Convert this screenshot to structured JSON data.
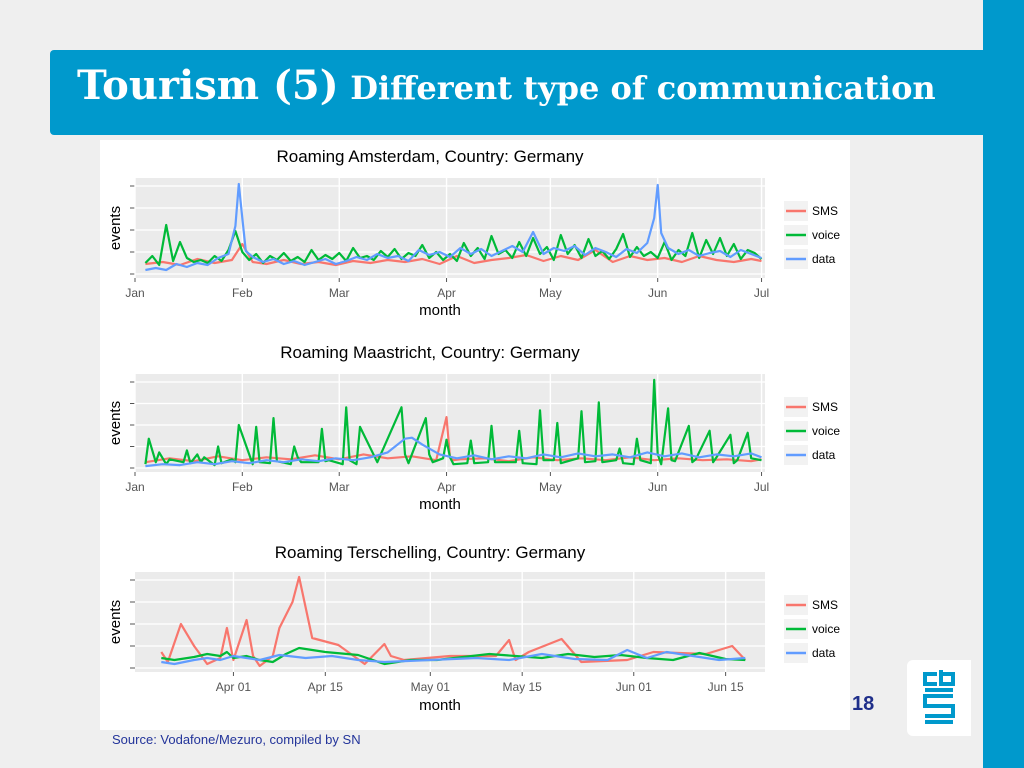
{
  "slide": {
    "title_main": "Tourism (5)",
    "title_sub": "Different type of communication",
    "page_number": "18",
    "source": "Source: Vodafone/Mezuro, compiled by SN",
    "accent_color": "#0099cc",
    "logo_icon": "cbs-logo-icon"
  },
  "chart_data": [
    {
      "type": "line",
      "title": "Roaming Amsterdam, Country: Germany",
      "xlabel": "month",
      "ylabel": "events",
      "x_ticks": [
        "Jan",
        "Feb",
        "Mar",
        "Apr",
        "May",
        "Jun",
        "Jul"
      ],
      "xlim": [
        0,
        182
      ],
      "ylim": [
        0,
        100
      ],
      "grid": true,
      "legend_position": "right",
      "series": [
        {
          "name": "SMS",
          "color": "#f8766d",
          "x": [
            3,
            8,
            13,
            18,
            23,
            28,
            31,
            34,
            38,
            43,
            48,
            53,
            58,
            63,
            68,
            73,
            78,
            83,
            88,
            93,
            98,
            103,
            108,
            113,
            118,
            123,
            128,
            133,
            138,
            143,
            148,
            153,
            158,
            163,
            168,
            173,
            178,
            181
          ],
          "y": [
            14,
            16,
            13,
            19,
            15,
            18,
            34,
            16,
            14,
            18,
            14,
            16,
            13,
            17,
            15,
            18,
            16,
            19,
            14,
            22,
            15,
            18,
            20,
            23,
            17,
            22,
            18,
            28,
            16,
            22,
            18,
            20,
            16,
            22,
            18,
            16,
            19,
            17
          ]
        },
        {
          "name": "voice",
          "color": "#00ba38",
          "x": [
            3,
            5,
            7,
            9,
            11,
            13,
            15,
            17,
            19,
            21,
            23,
            25,
            27,
            29,
            31,
            33,
            35,
            37,
            39,
            41,
            43,
            45,
            47,
            49,
            51,
            53,
            55,
            57,
            59,
            61,
            63,
            65,
            67,
            69,
            71,
            73,
            75,
            77,
            79,
            81,
            83,
            85,
            87,
            89,
            91,
            93,
            95,
            97,
            99,
            101,
            103,
            105,
            107,
            109,
            111,
            113,
            115,
            117,
            119,
            121,
            123,
            125,
            127,
            129,
            131,
            133,
            135,
            137,
            139,
            141,
            143,
            145,
            147,
            149,
            151,
            153,
            155,
            157,
            159,
            161,
            163,
            165,
            167,
            169,
            171,
            173,
            175,
            177,
            179,
            181
          ],
          "y": [
            15,
            22,
            13,
            53,
            17,
            36,
            20,
            16,
            18,
            15,
            22,
            17,
            28,
            47,
            26,
            18,
            24,
            15,
            22,
            18,
            25,
            17,
            21,
            16,
            28,
            18,
            23,
            19,
            25,
            17,
            30,
            20,
            22,
            18,
            27,
            21,
            29,
            19,
            25,
            22,
            33,
            20,
            26,
            18,
            24,
            17,
            35,
            22,
            30,
            19,
            42,
            24,
            28,
            20,
            36,
            22,
            40,
            24,
            31,
            18,
            43,
            24,
            33,
            20,
            39,
            22,
            27,
            19,
            29,
            44,
            21,
            31,
            22,
            26,
            20,
            36,
            18,
            28,
            22,
            45,
            20,
            38,
            24,
            40,
            22,
            34,
            19,
            28,
            25,
            19
          ]
        },
        {
          "name": "data",
          "color": "#619cff",
          "x": [
            3,
            6,
            9,
            12,
            15,
            18,
            21,
            24,
            27,
            29,
            30,
            31,
            32,
            34,
            37,
            40,
            43,
            46,
            49,
            52,
            55,
            58,
            61,
            64,
            67,
            70,
            73,
            76,
            79,
            82,
            85,
            88,
            91,
            94,
            97,
            100,
            103,
            106,
            109,
            112,
            115,
            118,
            121,
            124,
            127,
            130,
            133,
            136,
            139,
            142,
            145,
            148,
            150,
            151,
            152,
            154,
            157,
            160,
            163,
            166,
            169,
            172,
            175,
            178,
            181
          ],
          "y": [
            8,
            10,
            8,
            14,
            11,
            15,
            13,
            20,
            24,
            52,
            94,
            60,
            27,
            21,
            16,
            19,
            14,
            17,
            13,
            16,
            19,
            14,
            17,
            21,
            18,
            24,
            20,
            22,
            17,
            28,
            23,
            26,
            21,
            30,
            24,
            29,
            22,
            27,
            32,
            26,
            46,
            24,
            30,
            27,
            32,
            23,
            30,
            26,
            21,
            29,
            25,
            35,
            60,
            93,
            45,
            30,
            24,
            28,
            22,
            25,
            27,
            21,
            28,
            24,
            20
          ]
        }
      ]
    },
    {
      "type": "line",
      "title": "Roaming Maastricht, Country: Germany",
      "xlabel": "month",
      "ylabel": "events",
      "x_ticks": [
        "Jan",
        "Feb",
        "Mar",
        "Apr",
        "May",
        "Jun",
        "Jul"
      ],
      "xlim": [
        0,
        182
      ],
      "ylim": [
        0,
        100
      ],
      "grid": true,
      "legend_position": "right",
      "series": [
        {
          "name": "SMS",
          "color": "#f8766d",
          "x": [
            3,
            10,
            17,
            24,
            31,
            38,
            45,
            52,
            59,
            66,
            73,
            80,
            87,
            90,
            91,
            92,
            94,
            101,
            108,
            115,
            122,
            129,
            136,
            143,
            150,
            157,
            164,
            171,
            178,
            181
          ],
          "y": [
            10,
            14,
            11,
            16,
            12,
            15,
            13,
            17,
            13,
            18,
            14,
            16,
            12,
            56,
            15,
            12,
            13,
            14,
            11,
            15,
            12,
            14,
            12,
            15,
            12,
            14,
            12,
            13,
            11,
            13
          ]
        },
        {
          "name": "voice",
          "color": "#00ba38",
          "x": [
            3,
            4,
            6,
            7,
            9,
            10,
            14,
            15,
            16,
            18,
            19,
            20,
            23,
            24,
            25,
            28,
            29,
            30,
            34,
            35,
            36,
            39,
            40,
            41,
            45,
            46,
            47,
            48,
            53,
            54,
            55,
            56,
            60,
            61,
            62,
            64,
            65,
            70,
            77,
            78,
            79,
            84,
            85,
            86,
            89,
            90,
            91,
            92,
            96,
            97,
            98,
            102,
            103,
            104,
            110,
            111,
            112,
            116,
            117,
            118,
            121,
            122,
            123,
            128,
            129,
            130,
            133,
            134,
            135,
            139,
            140,
            141,
            144,
            145,
            146,
            149,
            150,
            151,
            152,
            154,
            155,
            156,
            160,
            161,
            162,
            166,
            167,
            168,
            172,
            173,
            174,
            177,
            178,
            181
          ],
          "y": [
            8,
            34,
            10,
            20,
            8,
            13,
            10,
            22,
            9,
            18,
            10,
            15,
            7,
            26,
            9,
            13,
            10,
            48,
            8,
            46,
            10,
            9,
            55,
            11,
            8,
            26,
            15,
            10,
            10,
            44,
            11,
            12,
            8,
            66,
            12,
            8,
            46,
            10,
            66,
            18,
            9,
            55,
            18,
            10,
            14,
            33,
            15,
            8,
            9,
            32,
            9,
            10,
            47,
            10,
            10,
            42,
            9,
            8,
            63,
            12,
            12,
            50,
            9,
            14,
            62,
            10,
            11,
            71,
            10,
            12,
            24,
            9,
            8,
            34,
            12,
            9,
            94,
            18,
            8,
            65,
            12,
            11,
            47,
            10,
            13,
            42,
            10,
            15,
            38,
            9,
            12,
            40,
            14,
            12
          ]
        },
        {
          "name": "data",
          "color": "#619cff",
          "x": [
            3,
            8,
            13,
            18,
            23,
            28,
            33,
            38,
            43,
            48,
            53,
            58,
            63,
            68,
            73,
            78,
            80,
            83,
            88,
            93,
            98,
            103,
            108,
            113,
            118,
            123,
            128,
            133,
            138,
            143,
            148,
            153,
            158,
            163,
            168,
            173,
            178,
            181
          ],
          "y": [
            6,
            8,
            7,
            10,
            8,
            11,
            9,
            12,
            10,
            13,
            11,
            14,
            12,
            15,
            20,
            34,
            35,
            28,
            18,
            14,
            17,
            13,
            16,
            14,
            18,
            15,
            19,
            16,
            18,
            15,
            20,
            16,
            19,
            15,
            18,
            16,
            19,
            15
          ]
        }
      ]
    },
    {
      "type": "line",
      "title": "Roaming Terschelling, Country: Germany",
      "xlabel": "month",
      "ylabel": "events",
      "x_ticks": [
        "Apr 01",
        "Apr 15",
        "May 01",
        "May 15",
        "Jun 01",
        "Jun 15"
      ],
      "xlim": [
        "Mar 17",
        "Jun 21"
      ],
      "ylim": [
        0,
        100
      ],
      "grid": true,
      "legend_position": "right",
      "series": [
        {
          "name": "SMS",
          "color": "#f8766d",
          "x": [
            "Mar 21",
            "Mar 22",
            "Mar 24",
            "Mar 26",
            "Mar 28",
            "Mar 30",
            "Mar 31",
            "Apr 01",
            "Apr 03",
            "Apr 04",
            "Apr 05",
            "Apr 07",
            "Apr 08",
            "Apr 10",
            "Apr 11",
            "Apr 13",
            "Apr 17",
            "Apr 21",
            "Apr 24",
            "Apr 25",
            "Apr 27",
            "May 04",
            "May 11",
            "May 13",
            "May 14",
            "May 16",
            "May 21",
            "May 24",
            "May 31",
            "Jun 04",
            "Jun 12",
            "Jun 16",
            "Jun 18"
          ],
          "y": [
            20,
            10,
            48,
            26,
            8,
            14,
            44,
            12,
            52,
            16,
            6,
            16,
            44,
            70,
            95,
            34,
            27,
            8,
            28,
            16,
            12,
            16,
            16,
            32,
            12,
            20,
            33,
            10,
            12,
            20,
            18,
            26,
            12
          ]
        },
        {
          "name": "voice",
          "color": "#00ba38",
          "x": [
            "Mar 21",
            "Mar 23",
            "Mar 26",
            "Mar 28",
            "Mar 30",
            "Mar 31",
            "Apr 01",
            "Apr 03",
            "Apr 05",
            "Apr 07",
            "Apr 09",
            "Apr 11",
            "Apr 15",
            "Apr 20",
            "Apr 24",
            "Apr 28",
            "May 02",
            "May 06",
            "May 10",
            "May 14",
            "May 18",
            "May 22",
            "May 26",
            "May 30",
            "Jun 03",
            "Jun 07",
            "Jun 11",
            "Jun 15",
            "Jun 18"
          ],
          "y": [
            14,
            12,
            15,
            18,
            16,
            20,
            14,
            16,
            12,
            10,
            18,
            24,
            20,
            17,
            8,
            12,
            12,
            15,
            18,
            16,
            14,
            18,
            15,
            17,
            14,
            12,
            19,
            13,
            12
          ]
        },
        {
          "name": "data",
          "color": "#619cff",
          "x": [
            "Mar 21",
            "Mar 23",
            "Mar 26",
            "Mar 28",
            "Mar 30",
            "Apr 01",
            "Apr 03",
            "Apr 05",
            "Apr 08",
            "Apr 12",
            "Apr 16",
            "Apr 20",
            "Apr 24",
            "May 01",
            "May 08",
            "May 13",
            "May 18",
            "May 23",
            "May 28",
            "May 31",
            "Jun 03",
            "Jun 06",
            "Jun 10",
            "Jun 14",
            "Jun 18"
          ],
          "y": [
            10,
            8,
            12,
            14,
            12,
            16,
            14,
            12,
            17,
            14,
            16,
            12,
            10,
            12,
            14,
            12,
            18,
            13,
            12,
            22,
            14,
            20,
            16,
            12,
            14
          ]
        }
      ]
    }
  ]
}
